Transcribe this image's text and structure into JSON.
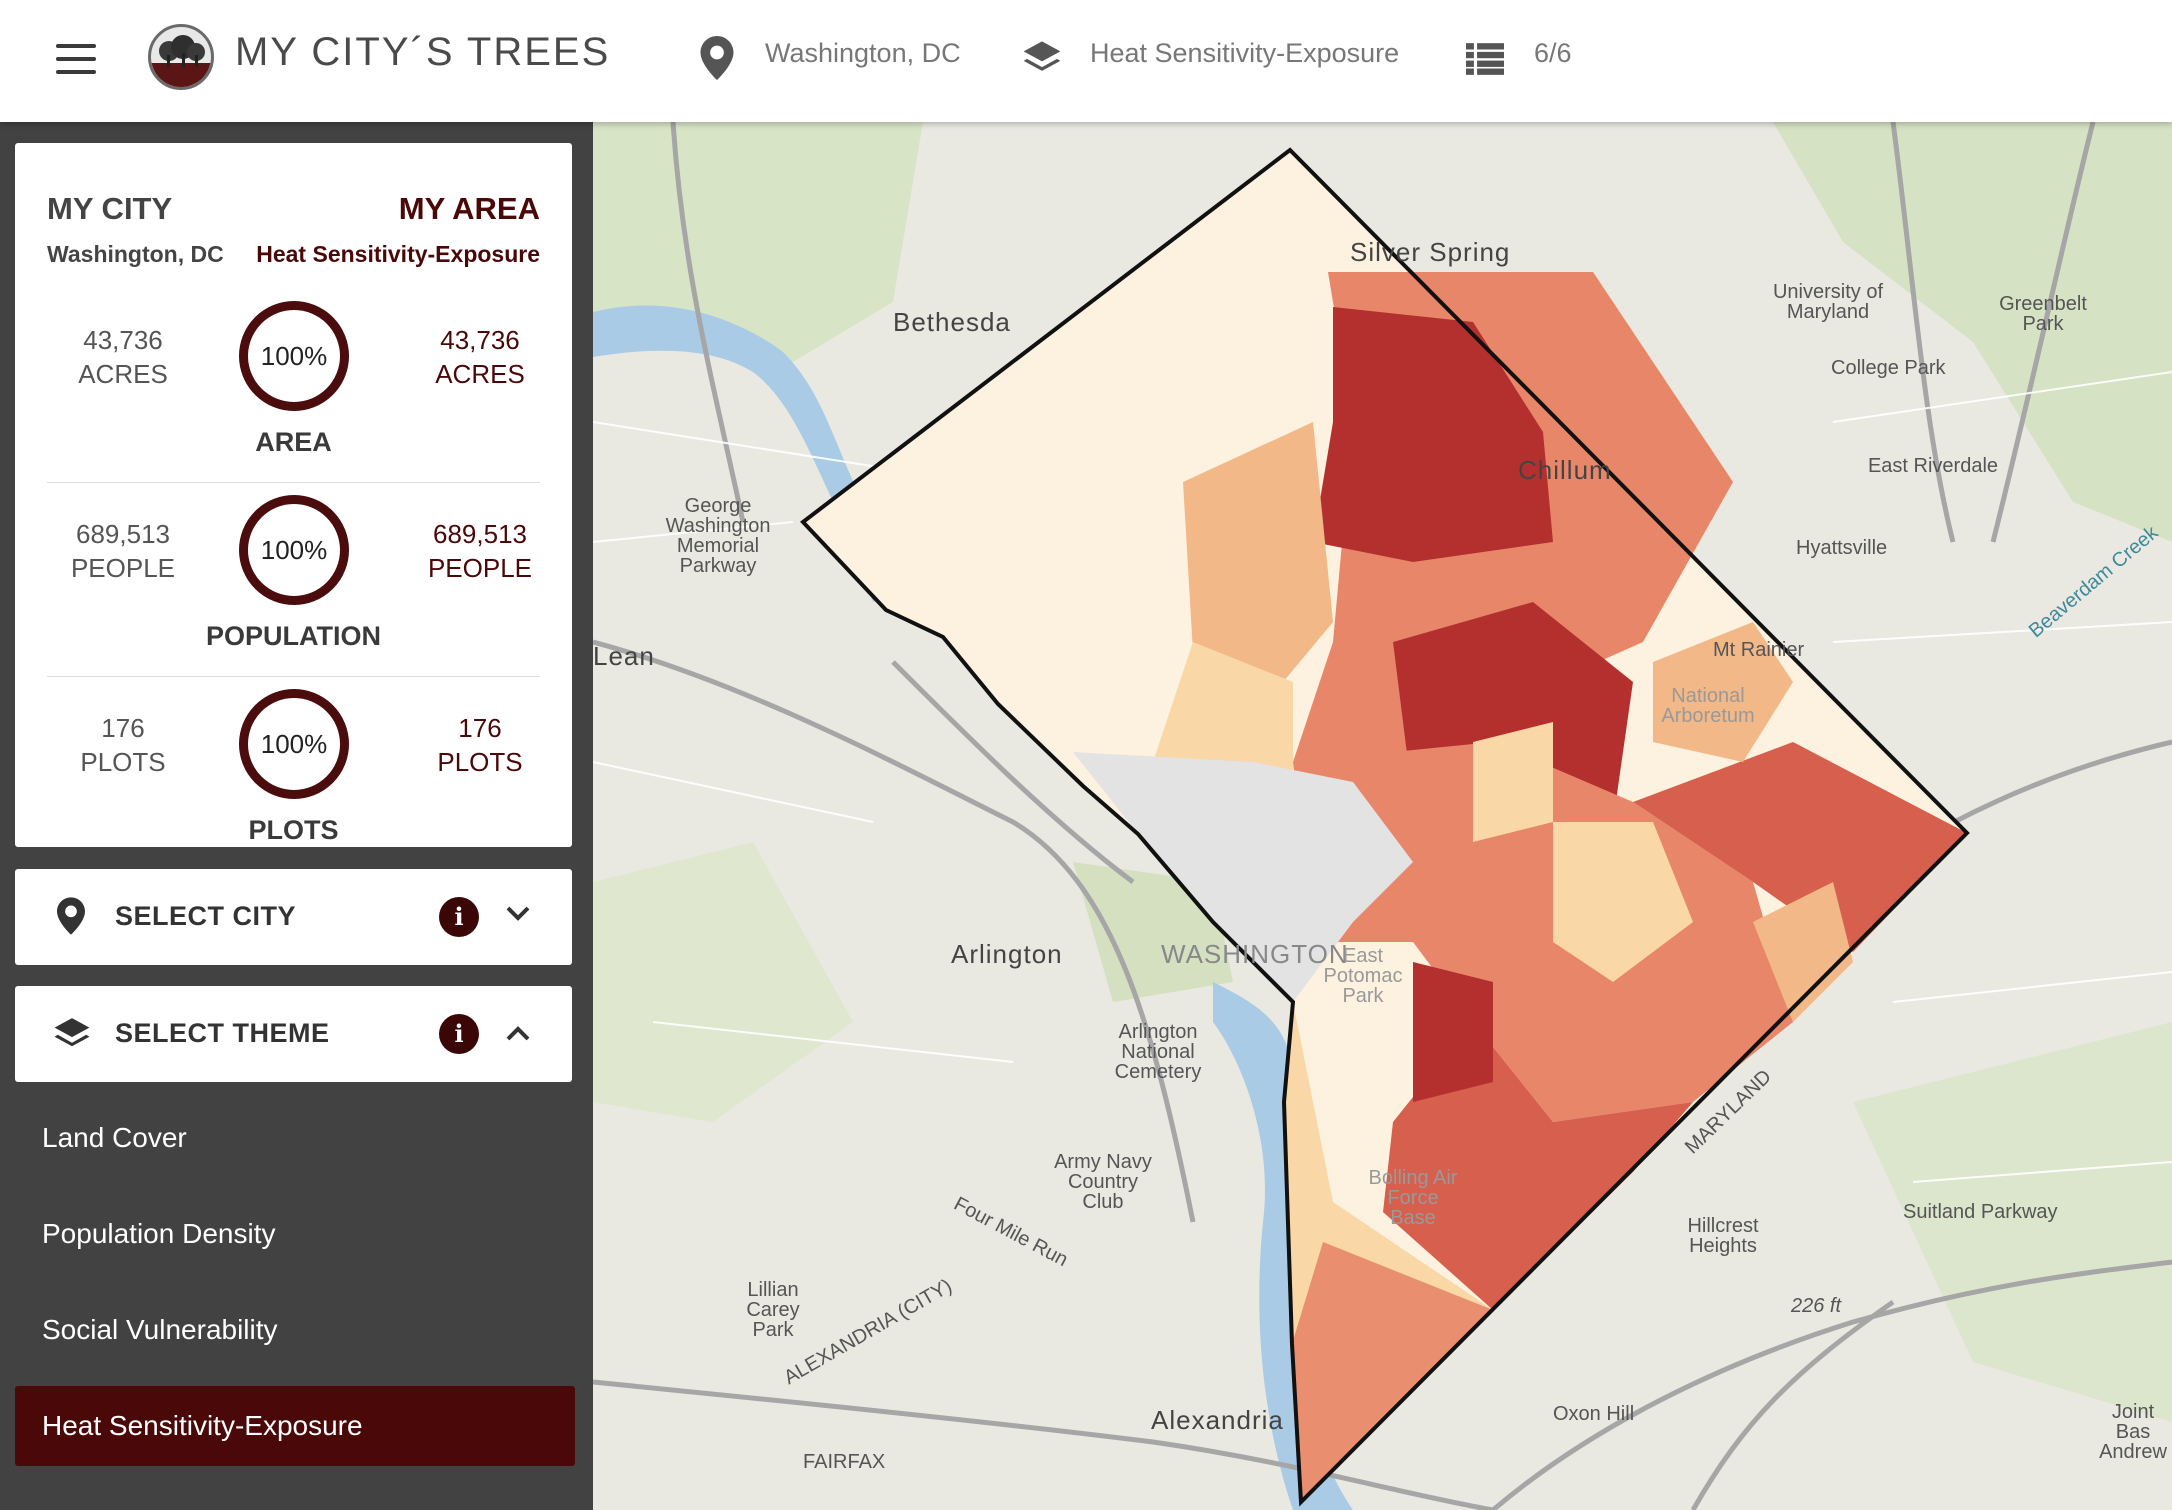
{
  "header": {
    "app_title": "MY CITY´S TREES",
    "city": "Washington, DC",
    "theme": "Heat Sensitivity-Exposure",
    "layer_count": "6/6"
  },
  "stats_card": {
    "my_city_heading": "MY CITY",
    "my_city_name": "Washington, DC",
    "my_area_heading": "MY AREA",
    "my_area_name": "Heat Sensitivity-Exposure",
    "rows": [
      {
        "city_value": "43,736",
        "city_unit": "ACRES",
        "percent": "100%",
        "area_value": "43,736",
        "area_unit": "ACRES",
        "label": "AREA"
      },
      {
        "city_value": "689,513",
        "city_unit": "PEOPLE",
        "percent": "100%",
        "area_value": "689,513",
        "area_unit": "PEOPLE",
        "label": "POPULATION"
      },
      {
        "city_value": "176",
        "city_unit": "PLOTS",
        "percent": "100%",
        "area_value": "176",
        "area_unit": "PLOTS",
        "label": "PLOTS"
      }
    ]
  },
  "select_city": {
    "label": "SELECT CITY",
    "info": "i"
  },
  "select_theme": {
    "label": "SELECT THEME",
    "info": "i"
  },
  "themes": [
    "Land Cover",
    "Population Density",
    "Social Vulnerability",
    "Heat Sensitivity-Exposure"
  ],
  "map": {
    "labels": {
      "silver_spring": "Silver Spring",
      "bethesda": "Bethesda",
      "university_of_maryland": "University of Maryland",
      "greenbelt_park": "Greenbelt Park",
      "college_park": "College Park",
      "chillum": "Chillum",
      "east_riverdale": "East Riverdale",
      "hyattsville": "Hyattsville",
      "mt_rainier": "Mt Rainier",
      "george_washington_parkway": "George Washington Memorial Parkway",
      "mclean": "Lean",
      "arlington": "Arlington",
      "washington": "WASHINGTON",
      "arlington_cemetery": "Arlington National Cemetery",
      "army_navy": "Army Navy Country Club",
      "four_mile_run": "Four Mile Run",
      "lillian_carey": "Lillian Carey Park",
      "alexandria_city": "ALEXANDRIA (CITY)",
      "alexandria": "Alexandria",
      "hillcrest": "Hillcrest Heights",
      "suitland": "Suitland Parkway",
      "oxon_hill": "Oxon Hill",
      "joint_base": "Joint Bas Andrew",
      "maryland": "MARYLAND",
      "fairfax": "FAIRFAX",
      "beaverdam": "Beaverdam Creek",
      "national_arboretum": "National Arboretum",
      "bolling": "Bolling Air Force Base",
      "east_potomac": "East Potomac Park",
      "elev": "226 ft"
    }
  },
  "colors": {
    "accent": "#4a0808",
    "sidebar": "#424242",
    "choropleth": [
      "#fdf1df",
      "#f9d7a6",
      "#f3b888",
      "#e8866a",
      "#d65f4e",
      "#b3302f"
    ]
  }
}
